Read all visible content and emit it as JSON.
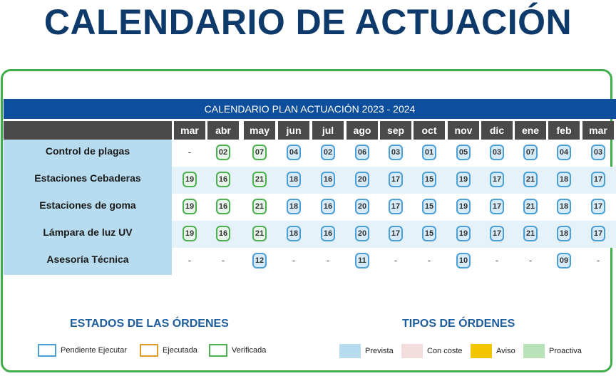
{
  "title": "CALENDARIO DE ACTUACIÓN",
  "plan_header": "CALENDARIO PLAN ACTUACIÓN 2023 - 2024",
  "months": [
    "mar",
    "abr",
    "may",
    "jun",
    "jul",
    "ago",
    "sep",
    "oct",
    "nov",
    "dic",
    "ene",
    "feb",
    "mar"
  ],
  "rows": [
    {
      "label": "Control de plagas",
      "values": [
        "-",
        "02",
        "07",
        "04",
        "02",
        "06",
        "03",
        "01",
        "05",
        "03",
        "07",
        "04",
        "03"
      ]
    },
    {
      "label": "Estaciones Cebaderas",
      "values": [
        "19",
        "16",
        "21",
        "18",
        "16",
        "20",
        "17",
        "15",
        "19",
        "17",
        "21",
        "18",
        "17"
      ]
    },
    {
      "label": "Estaciones de goma",
      "values": [
        "19",
        "16",
        "21",
        "18",
        "16",
        "20",
        "17",
        "15",
        "19",
        "17",
        "21",
        "18",
        "17"
      ]
    },
    {
      "label": "Lámpara de luz UV",
      "values": [
        "19",
        "16",
        "21",
        "18",
        "16",
        "20",
        "17",
        "15",
        "19",
        "17",
        "21",
        "18",
        "17"
      ]
    },
    {
      "label": "Asesoría Técnica",
      "values": [
        "-",
        "-",
        "12",
        "-",
        "-",
        "11",
        "-",
        "-",
        "10",
        "-",
        "-",
        "09",
        "-"
      ]
    }
  ],
  "legend": {
    "states_title": "ESTADOS DE LAS ÓRDENES",
    "states": [
      {
        "label": "Pendiente Ejecutar",
        "color": "#4a9fd6"
      },
      {
        "label": "Ejecutada",
        "color": "#e09a2c"
      },
      {
        "label": "Verificada",
        "color": "#4caf50"
      }
    ],
    "types_title": "TIPOS DE ÓRDENES",
    "types": [
      {
        "label": "Prevista",
        "color": "#b7dcef"
      },
      {
        "label": "Con coste",
        "color": "#f2dcdc"
      },
      {
        "label": "Aviso",
        "color": "#f2c500"
      },
      {
        "label": "Proactiva",
        "color": "#b9e2b9"
      }
    ]
  }
}
